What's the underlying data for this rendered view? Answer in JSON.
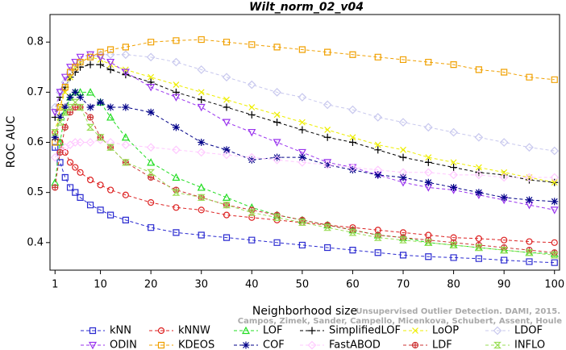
{
  "chart_data": {
    "type": "line",
    "title": "Wilt_norm_02_v04",
    "x_label": "Neighborhood size",
    "y_label": "ROC AUC",
    "annotations": [
      "Unsupervised Outlier Detection. DAMI, 2015.",
      "Campos, Zimek, Sander, Campello, Micenkova, Schubert, Assent, Houle"
    ],
    "xlim": [
      0,
      101
    ],
    "ylim": [
      0.345,
      0.855
    ],
    "xticks": [
      1,
      10,
      20,
      30,
      40,
      50,
      60,
      70,
      80,
      90,
      100
    ],
    "yticks": [
      0.4,
      0.5,
      0.6,
      0.7,
      0.8
    ],
    "x": [
      1,
      2,
      3,
      4,
      5,
      6,
      8,
      10,
      12,
      15,
      20,
      25,
      30,
      35,
      40,
      45,
      50,
      55,
      60,
      65,
      70,
      75,
      80,
      85,
      90,
      95,
      100
    ],
    "series": [
      {
        "name": "kNN",
        "color": "#2a2ad0",
        "marker": "square",
        "values": [
          0.59,
          0.56,
          0.53,
          0.51,
          0.5,
          0.49,
          0.475,
          0.465,
          0.455,
          0.445,
          0.43,
          0.42,
          0.415,
          0.41,
          0.405,
          0.4,
          0.395,
          0.39,
          0.385,
          0.38,
          0.375,
          0.372,
          0.37,
          0.368,
          0.365,
          0.362,
          0.36
        ]
      },
      {
        "name": "kNNW",
        "color": "#dd2222",
        "marker": "circle",
        "values": [
          0.62,
          0.6,
          0.58,
          0.56,
          0.55,
          0.54,
          0.525,
          0.515,
          0.505,
          0.495,
          0.48,
          0.47,
          0.465,
          0.455,
          0.45,
          0.445,
          0.44,
          0.435,
          0.43,
          0.425,
          0.42,
          0.415,
          0.41,
          0.408,
          0.405,
          0.402,
          0.4
        ]
      },
      {
        "name": "LOF",
        "color": "#22dd22",
        "marker": "triangle",
        "values": [
          0.52,
          0.6,
          0.66,
          0.69,
          0.7,
          0.7,
          0.7,
          0.68,
          0.65,
          0.61,
          0.56,
          0.53,
          0.51,
          0.49,
          0.47,
          0.455,
          0.445,
          0.435,
          0.425,
          0.415,
          0.41,
          0.4,
          0.395,
          0.39,
          0.385,
          0.38,
          0.378
        ]
      },
      {
        "name": "SimplifiedLOF",
        "color": "#000000",
        "marker": "plus",
        "values": [
          0.65,
          0.69,
          0.71,
          0.73,
          0.74,
          0.75,
          0.755,
          0.755,
          0.745,
          0.735,
          0.72,
          0.7,
          0.685,
          0.67,
          0.655,
          0.64,
          0.625,
          0.61,
          0.6,
          0.585,
          0.57,
          0.56,
          0.55,
          0.54,
          0.535,
          0.525,
          0.52
        ]
      },
      {
        "name": "LoOP",
        "color": "#eeee00",
        "marker": "cross",
        "values": [
          0.62,
          0.67,
          0.7,
          0.73,
          0.75,
          0.76,
          0.77,
          0.765,
          0.755,
          0.745,
          0.73,
          0.715,
          0.7,
          0.685,
          0.67,
          0.655,
          0.64,
          0.625,
          0.61,
          0.595,
          0.585,
          0.57,
          0.56,
          0.55,
          0.54,
          0.53,
          0.52
        ]
      },
      {
        "name": "LDOF",
        "color": "#c8c8ee",
        "marker": "diamond",
        "values": [
          0.67,
          0.7,
          0.72,
          0.74,
          0.75,
          0.76,
          0.77,
          0.775,
          0.775,
          0.775,
          0.77,
          0.76,
          0.745,
          0.73,
          0.715,
          0.7,
          0.69,
          0.675,
          0.665,
          0.65,
          0.64,
          0.63,
          0.62,
          0.61,
          0.6,
          0.59,
          0.583
        ]
      },
      {
        "name": "ODIN",
        "color": "#9933ee",
        "marker": "triangle-down",
        "values": [
          0.66,
          0.7,
          0.73,
          0.75,
          0.76,
          0.77,
          0.775,
          0.77,
          0.76,
          0.74,
          0.71,
          0.69,
          0.67,
          0.64,
          0.62,
          0.6,
          0.58,
          0.56,
          0.55,
          0.535,
          0.52,
          0.51,
          0.505,
          0.495,
          0.485,
          0.475,
          0.465
        ]
      },
      {
        "name": "KDEOS",
        "color": "#f0a000",
        "marker": "square",
        "values": [
          0.6,
          0.67,
          0.71,
          0.74,
          0.75,
          0.76,
          0.77,
          0.78,
          0.785,
          0.79,
          0.8,
          0.803,
          0.805,
          0.8,
          0.795,
          0.79,
          0.785,
          0.78,
          0.775,
          0.77,
          0.765,
          0.76,
          0.755,
          0.745,
          0.74,
          0.73,
          0.725
        ]
      },
      {
        "name": "COF",
        "color": "#000088",
        "marker": "asterisk",
        "values": [
          0.61,
          0.65,
          0.67,
          0.69,
          0.7,
          0.69,
          0.67,
          0.68,
          0.67,
          0.67,
          0.66,
          0.63,
          0.6,
          0.585,
          0.565,
          0.57,
          0.57,
          0.555,
          0.545,
          0.535,
          0.53,
          0.52,
          0.51,
          0.5,
          0.49,
          0.485,
          0.482
        ]
      },
      {
        "name": "FastABOD",
        "color": "#ffc8ff",
        "marker": "diamond",
        "values": [
          0.57,
          0.58,
          0.59,
          0.595,
          0.6,
          0.6,
          0.6,
          0.605,
          0.6,
          0.595,
          0.59,
          0.585,
          0.58,
          0.575,
          0.57,
          0.565,
          0.56,
          0.555,
          0.55,
          0.545,
          0.54,
          0.54,
          0.535,
          0.535,
          0.53,
          0.53,
          0.53
        ]
      },
      {
        "name": "LDF",
        "color": "#cc3333",
        "marker": "circle-plus",
        "values": [
          0.51,
          0.58,
          0.63,
          0.66,
          0.67,
          0.67,
          0.65,
          0.61,
          0.59,
          0.56,
          0.53,
          0.505,
          0.49,
          0.475,
          0.465,
          0.455,
          0.445,
          0.435,
          0.425,
          0.415,
          0.41,
          0.405,
          0.4,
          0.395,
          0.39,
          0.385,
          0.38
        ]
      },
      {
        "name": "INFLO",
        "color": "#99dd55",
        "marker": "hourglass",
        "values": [
          0.62,
          0.64,
          0.66,
          0.67,
          0.68,
          0.67,
          0.63,
          0.61,
          0.59,
          0.56,
          0.54,
          0.5,
          0.49,
          0.475,
          0.46,
          0.45,
          0.44,
          0.43,
          0.42,
          0.41,
          0.405,
          0.4,
          0.395,
          0.39,
          0.385,
          0.38,
          0.375
        ]
      }
    ]
  }
}
